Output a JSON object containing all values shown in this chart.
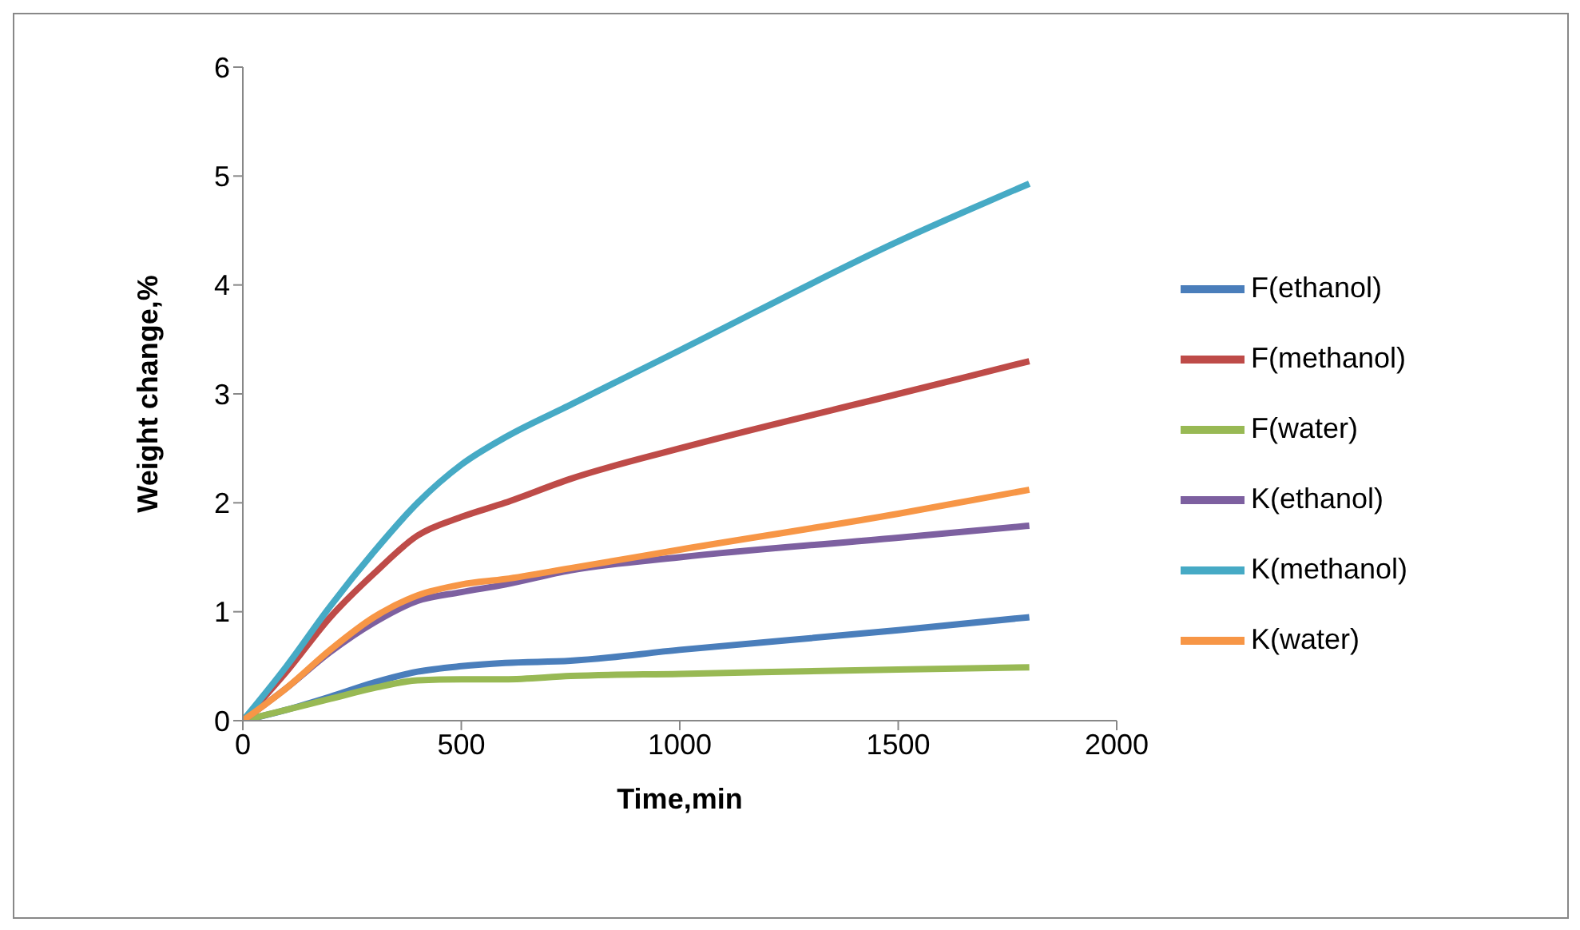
{
  "chart_data": {
    "type": "line",
    "xlabel": "Time,min",
    "ylabel": "Weight change,%",
    "xlim": [
      0,
      2000
    ],
    "xticks": [
      0,
      500,
      1000,
      1500,
      2000
    ],
    "ylim": [
      0,
      6
    ],
    "yticks": [
      0,
      1,
      2,
      3,
      4,
      5,
      6
    ],
    "grid": false,
    "legend": "right",
    "marker": "none",
    "line_style": "solid",
    "x": [
      0,
      100,
      200,
      300,
      400,
      500,
      600,
      750,
      1000,
      1500,
      1800
    ],
    "series": [
      {
        "name": "F(ethanol)",
        "color": "#4a7ebb",
        "values": [
          0,
          0.1,
          0.22,
          0.35,
          0.45,
          0.5,
          0.53,
          0.55,
          0.65,
          0.83,
          0.95
        ]
      },
      {
        "name": "F(methanol)",
        "color": "#be4b48",
        "values": [
          0,
          0.45,
          0.95,
          1.35,
          1.7,
          1.87,
          2.0,
          2.22,
          2.5,
          3.0,
          3.3
        ]
      },
      {
        "name": "F(water)",
        "color": "#98b954",
        "values": [
          0,
          0.1,
          0.2,
          0.3,
          0.37,
          0.38,
          0.38,
          0.41,
          0.43,
          0.47,
          0.49
        ]
      },
      {
        "name": "K(ethanol)",
        "color": "#7d60a0",
        "values": [
          0,
          0.3,
          0.63,
          0.9,
          1.1,
          1.18,
          1.25,
          1.38,
          1.5,
          1.68,
          1.79
        ]
      },
      {
        "name": "K(methanol)",
        "color": "#46aac5",
        "values": [
          0,
          0.5,
          1.05,
          1.55,
          2.0,
          2.35,
          2.6,
          2.9,
          3.4,
          4.4,
          4.93
        ]
      },
      {
        "name": "K(water)",
        "color": "#f79646",
        "values": [
          0,
          0.3,
          0.65,
          0.95,
          1.15,
          1.25,
          1.3,
          1.4,
          1.57,
          1.9,
          2.12
        ]
      }
    ]
  }
}
